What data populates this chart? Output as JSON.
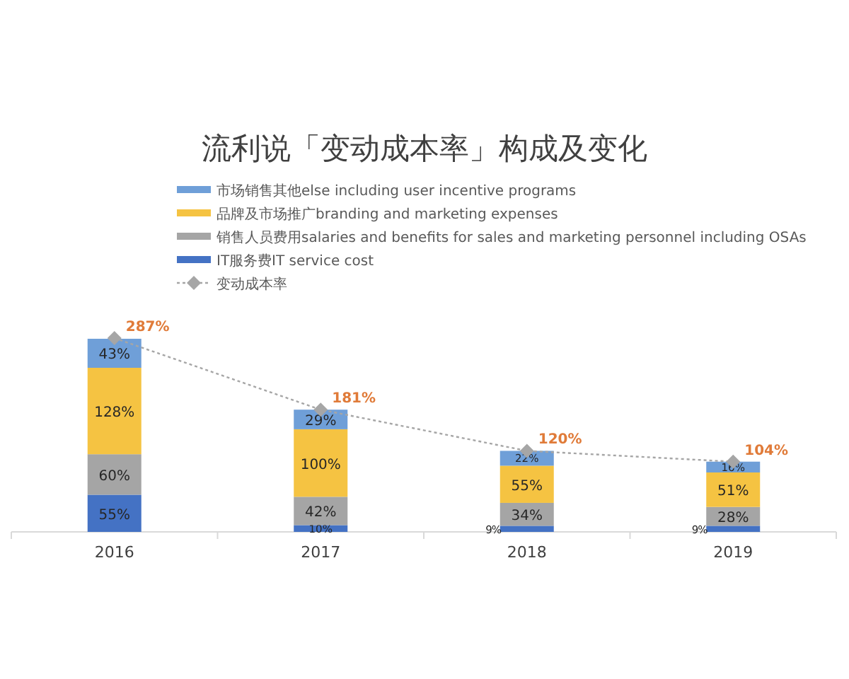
{
  "chart_data": {
    "type": "bar",
    "stacked": true,
    "title": "流利说「变动成本率」构成及变化",
    "categories": [
      "2016",
      "2017",
      "2018",
      "2019"
    ],
    "series": [
      {
        "name": "IT服务费IT service cost",
        "color": "#4472c4",
        "values": [
          55,
          10,
          9,
          9
        ],
        "value_labels": [
          "55%",
          "10%",
          "9%",
          "9%"
        ]
      },
      {
        "name": "销售人员费用salaries and benefits for sales and marketing personnel including OSAs",
        "color": "#a5a5a5",
        "values": [
          60,
          42,
          34,
          28
        ],
        "value_labels": [
          "60%",
          "42%",
          "34%",
          "28%"
        ]
      },
      {
        "name": "品牌及市场推广branding and marketing expenses",
        "color": "#f5c342",
        "values": [
          128,
          100,
          55,
          51
        ],
        "value_labels": [
          "128%",
          "100%",
          "55%",
          "51%"
        ]
      },
      {
        "name": "市场销售其他else including user incentive programs",
        "color": "#6f9fd8",
        "values": [
          43,
          29,
          22,
          16
        ],
        "value_labels": [
          "43%",
          "29%",
          "22%",
          "16%"
        ]
      },
      {
        "name": "变动成本率",
        "type": "line",
        "color": "#a6a6a6",
        "marker": "diamond",
        "line_style": "dotted",
        "values": [
          287,
          181,
          120,
          104
        ],
        "value_labels": [
          "287%",
          "181%",
          "120%",
          "104%"
        ]
      }
    ],
    "legend": "top"
  }
}
